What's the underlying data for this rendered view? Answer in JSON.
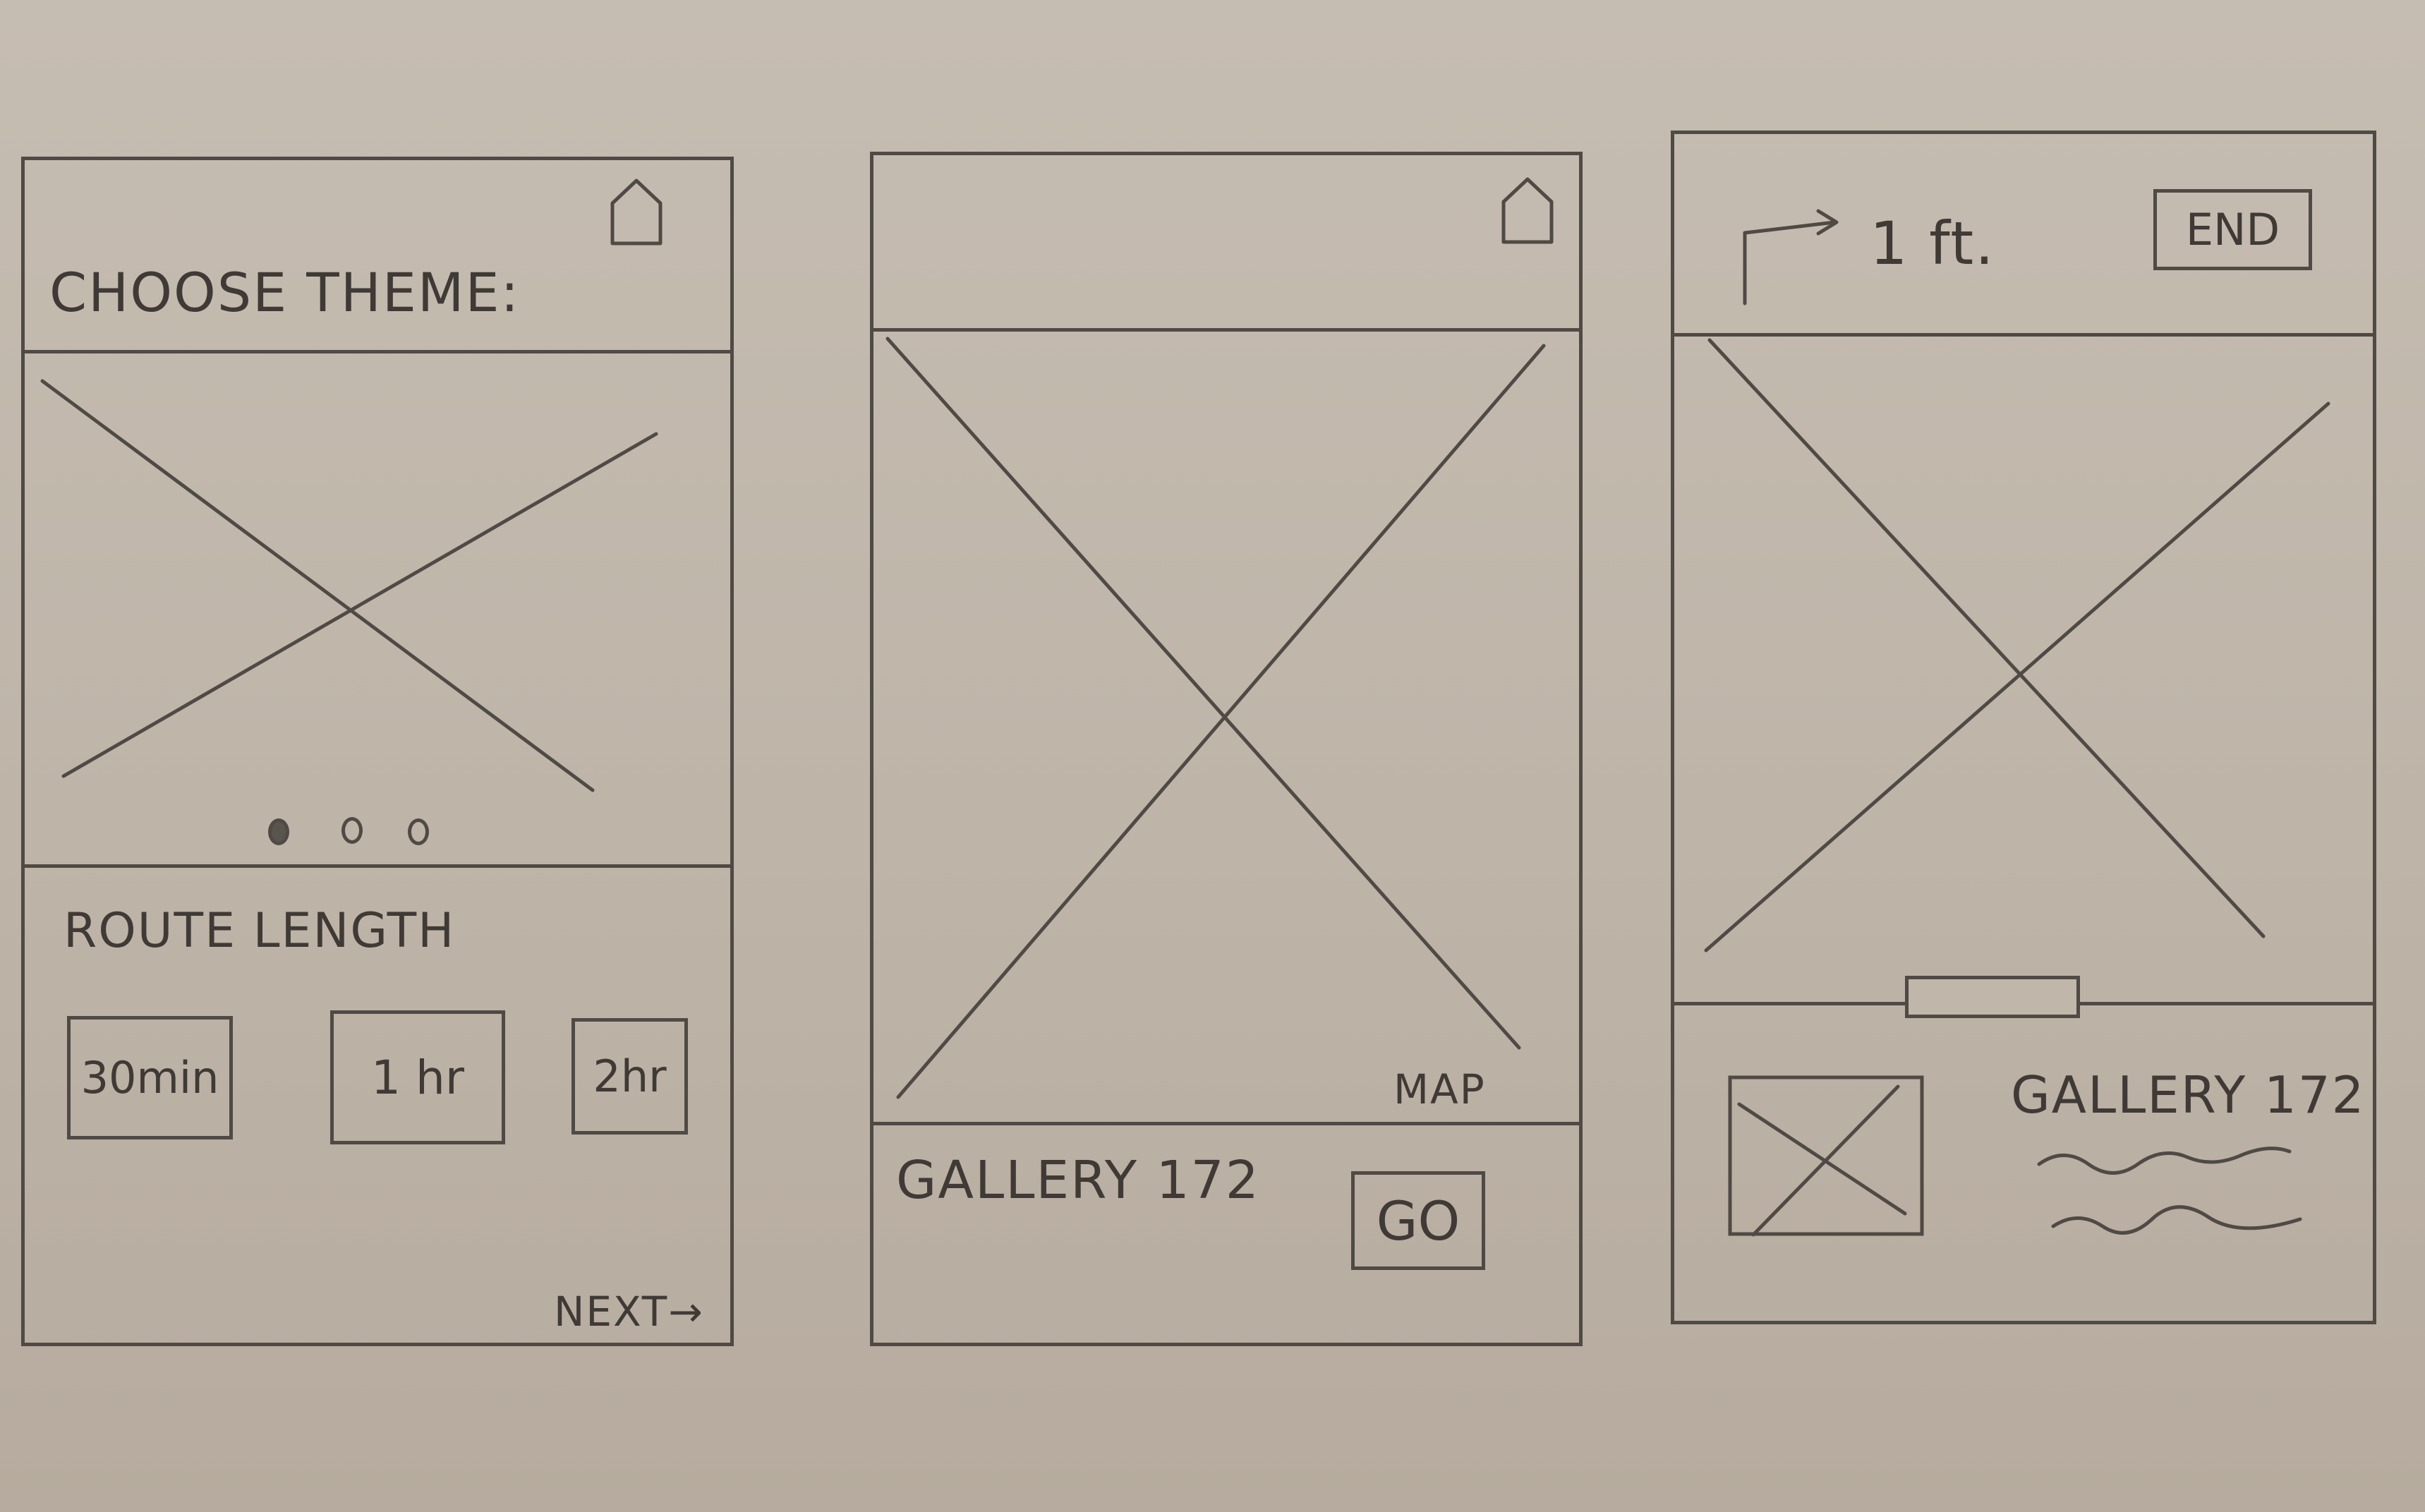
{
  "screens": [
    {
      "header": {
        "title": "CHOOSE THEME:",
        "home_icon": "home-icon"
      },
      "carousel": {
        "pager_dots": 3,
        "active_dot": 1
      },
      "route": {
        "label": "ROUTE LENGTH",
        "options": [
          "30min",
          "1 hr",
          "2hr"
        ]
      },
      "footer": {
        "next_label": "NEXT→"
      }
    },
    {
      "header": {
        "home_icon": "home-icon"
      },
      "map": {
        "label": "MAP"
      },
      "footer": {
        "gallery_label": "GALLERY 172",
        "go_label": "GO"
      }
    },
    {
      "header": {
        "turn_icon": "turn-right-arrow-icon",
        "distance": "1 ft.",
        "end_label": "END"
      },
      "detail": {
        "gallery_label": "GALLERY 172",
        "description_icon": "squiggle-text-icon"
      }
    }
  ]
}
